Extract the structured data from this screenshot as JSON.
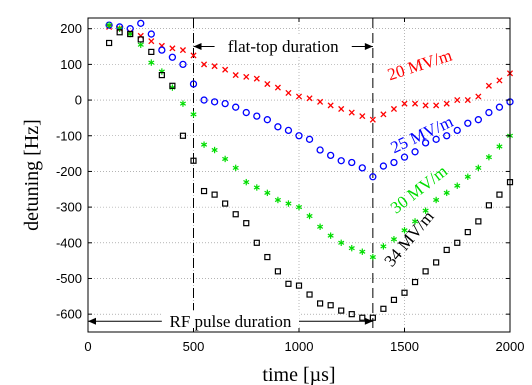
{
  "chart_data": {
    "type": "scatter",
    "xlabel": "time [µs]",
    "ylabel": "detuning [Hz]",
    "xlim": [
      0,
      2000
    ],
    "ylim": [
      -650,
      230
    ],
    "x_ticks": [
      0,
      500,
      1000,
      1500,
      2000
    ],
    "y_ticks": [
      -600,
      -500,
      -400,
      -300,
      -200,
      -100,
      0,
      100,
      200
    ],
    "grid": true,
    "vlines": [
      500,
      1350
    ],
    "annotations": [
      {
        "text": "flat-top duration",
        "x_from": 500,
        "x_to": 1350,
        "y": 150
      },
      {
        "text": "RF pulse duration",
        "x_from": 0,
        "x_to": 1350,
        "y": -620
      }
    ],
    "series": [
      {
        "name": "20 MV/m",
        "color": "#ff0000",
        "marker": "x",
        "label_angle": -18,
        "x": [
          100,
          150,
          200,
          250,
          300,
          350,
          400,
          450,
          500,
          550,
          600,
          650,
          700,
          750,
          800,
          850,
          900,
          950,
          1000,
          1050,
          1100,
          1150,
          1200,
          1250,
          1300,
          1350,
          1400,
          1450,
          1500,
          1550,
          1600,
          1650,
          1700,
          1750,
          1800,
          1850,
          1900,
          1950,
          2000
        ],
        "y": [
          205,
          200,
          190,
          180,
          165,
          152,
          145,
          140,
          125,
          100,
          95,
          85,
          70,
          65,
          60,
          45,
          35,
          20,
          10,
          5,
          -5,
          -15,
          -25,
          -35,
          -45,
          -55,
          -40,
          -25,
          -10,
          -10,
          -15,
          -15,
          -10,
          0,
          0,
          10,
          40,
          55,
          75
        ]
      },
      {
        "name": "25 MV/m",
        "color": "#0000ff",
        "marker": "o",
        "label_angle": -25,
        "x": [
          100,
          150,
          200,
          250,
          300,
          350,
          400,
          450,
          500,
          550,
          600,
          650,
          700,
          750,
          800,
          850,
          900,
          950,
          1000,
          1050,
          1100,
          1150,
          1200,
          1250,
          1300,
          1350,
          1400,
          1450,
          1500,
          1550,
          1600,
          1650,
          1700,
          1750,
          1800,
          1850,
          1900,
          1950,
          2000
        ],
        "y": [
          210,
          205,
          200,
          215,
          185,
          140,
          120,
          100,
          45,
          0,
          -5,
          -10,
          -20,
          -35,
          -45,
          -55,
          -75,
          -85,
          -100,
          -110,
          -140,
          -155,
          -170,
          -175,
          -190,
          -215,
          -185,
          -175,
          -160,
          -145,
          -120,
          -110,
          -100,
          -85,
          -65,
          -55,
          -35,
          -20,
          -5
        ]
      },
      {
        "name": "30 MV/m",
        "color": "#00dd00",
        "marker": "*",
        "label_angle": -38,
        "x": [
          100,
          150,
          200,
          250,
          300,
          350,
          400,
          450,
          500,
          550,
          600,
          650,
          700,
          750,
          800,
          850,
          900,
          950,
          1000,
          1050,
          1100,
          1150,
          1200,
          1250,
          1300,
          1350,
          1400,
          1450,
          1500,
          1550,
          1600,
          1650,
          1700,
          1750,
          1800,
          1850,
          1900,
          1950,
          2000
        ],
        "y": [
          210,
          200,
          185,
          155,
          105,
          80,
          35,
          -10,
          -40,
          -125,
          -140,
          -165,
          -190,
          -230,
          -245,
          -260,
          -280,
          -290,
          -300,
          -325,
          -355,
          -380,
          -400,
          -415,
          -425,
          -440,
          -410,
          -390,
          -365,
          -340,
          -310,
          -280,
          -260,
          -240,
          -215,
          -190,
          -160,
          -130,
          -100
        ]
      },
      {
        "name": "34 MV/m",
        "color": "#000000",
        "marker": "s",
        "label_angle": -50,
        "x": [
          100,
          150,
          200,
          250,
          300,
          350,
          400,
          450,
          500,
          550,
          600,
          650,
          700,
          750,
          800,
          850,
          900,
          950,
          1000,
          1050,
          1100,
          1150,
          1200,
          1250,
          1300,
          1350,
          1400,
          1450,
          1500,
          1550,
          1600,
          1650,
          1700,
          1750,
          1800,
          1850,
          1900,
          1950,
          2000
        ],
        "y": [
          160,
          190,
          185,
          170,
          135,
          70,
          40,
          -100,
          -170,
          -255,
          -265,
          -290,
          -320,
          -345,
          -400,
          -440,
          -480,
          -515,
          -520,
          -545,
          -570,
          -575,
          -590,
          -600,
          -610,
          -610,
          -585,
          -560,
          -540,
          -510,
          -480,
          -455,
          -420,
          -400,
          -370,
          -340,
          -295,
          -265,
          -230
        ]
      }
    ]
  }
}
